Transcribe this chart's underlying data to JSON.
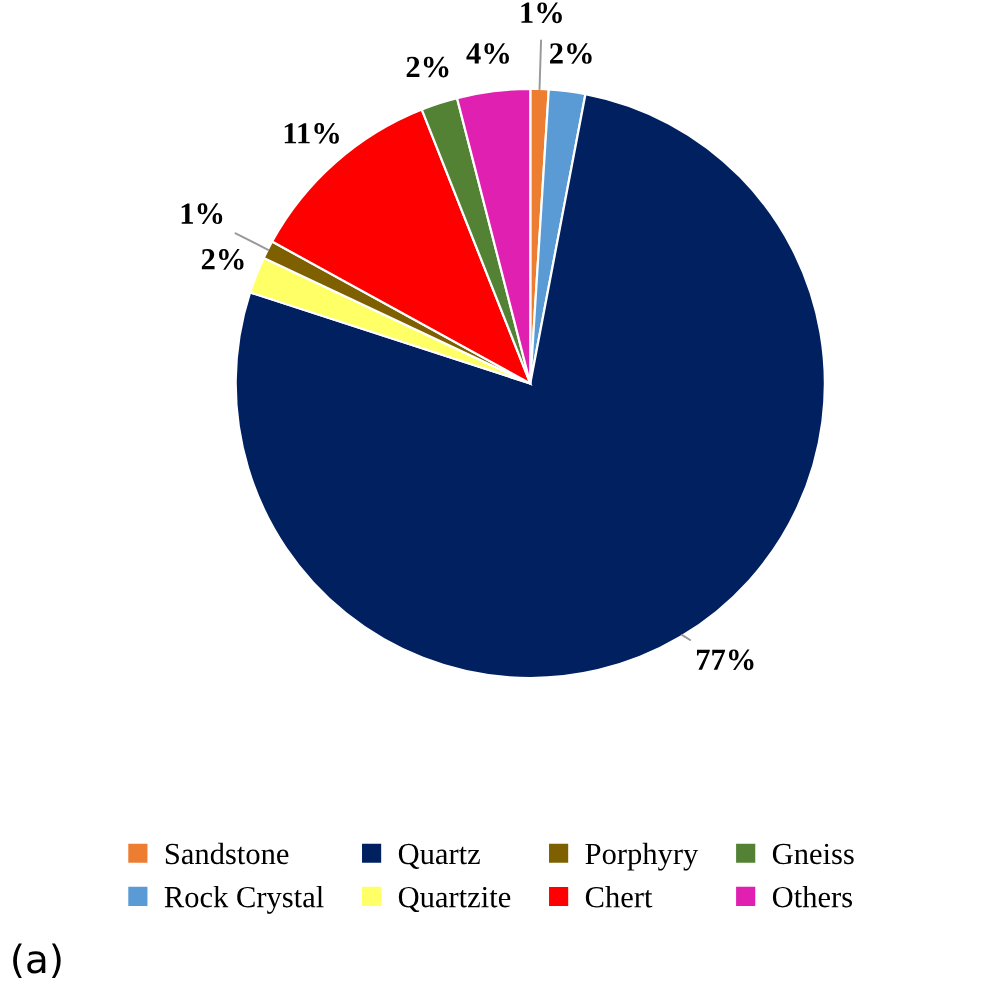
{
  "chart_data": {
    "type": "pie",
    "categories": [
      "Sandstone",
      "Rock Crystal",
      "Quartz",
      "Quartzite",
      "Porphyry",
      "Chert",
      "Gneiss",
      "Others"
    ],
    "values": [
      1,
      2,
      77,
      2,
      1,
      11,
      2,
      4
    ],
    "colors": [
      "#ed7d31",
      "#5b9bd5",
      "#002060",
      "#ffff66",
      "#7f6000",
      "#ff0000",
      "#548235",
      "#e020b0"
    ],
    "value_labels": [
      "1%",
      "2%",
      "77%",
      "2%",
      "1%",
      "11%",
      "2%",
      "4%"
    ],
    "legend": "bottom",
    "annotations": [
      "(a)"
    ]
  }
}
